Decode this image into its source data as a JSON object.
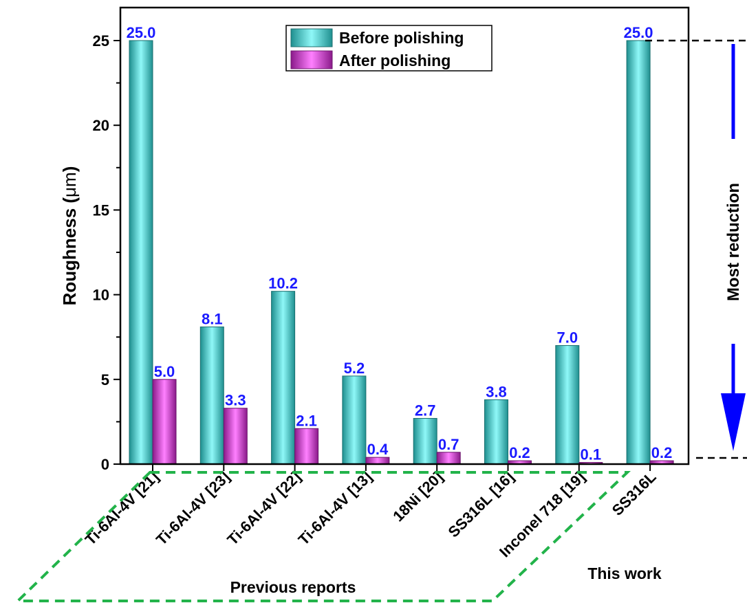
{
  "chart_data": {
    "type": "bar",
    "ylabel_text": "Roughness (",
    "ylabel_unit": "μm",
    "ylabel_close": ")",
    "ylim": [
      0,
      27
    ],
    "yticks": [
      0,
      5,
      10,
      15,
      20,
      25
    ],
    "grid": false,
    "legend_position": "top-center",
    "categories": [
      "Ti-6Al-4V [21]",
      "Ti-6Al-4V [23]",
      "Ti-6Al-4V [22]",
      "Ti-6Al-4V [13]",
      "18Ni [20]",
      "SS316L [16]",
      "Inconel 718 [19]",
      "SS316L"
    ],
    "series": [
      {
        "name": "Before polishing",
        "color": "#3fc4c4",
        "values": [
          25.0,
          8.1,
          10.2,
          5.2,
          2.7,
          3.8,
          7.0,
          25.0
        ],
        "labels": [
          "25.0",
          "8.1",
          "10.2",
          "5.2",
          "2.7",
          "3.8",
          "7.0",
          "25.0"
        ]
      },
      {
        "name": "After polishing",
        "color": "#c02cc0",
        "values": [
          5.0,
          3.3,
          2.1,
          0.4,
          0.7,
          0.2,
          0.1,
          0.2
        ],
        "labels": [
          "5.0",
          "3.3",
          "2.1",
          "0.4",
          "0.7",
          "0.2",
          "0.1",
          "0.2"
        ]
      }
    ],
    "group_labels": {
      "previous": "Previous reports",
      "current": "This work"
    },
    "annotation": {
      "text": "Most reduction",
      "arrow_color": "#0000ff"
    },
    "label_color": "#1a1aff"
  }
}
